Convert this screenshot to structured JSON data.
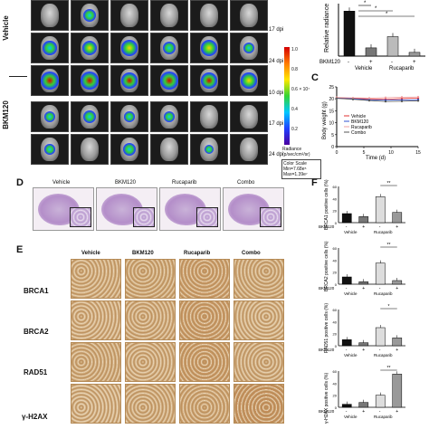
{
  "panelA": {
    "groups": [
      "Vehicle",
      "BKM120"
    ],
    "dpi_labels": [
      "17 dpi",
      "24 dpi",
      "10 dpi",
      "17 dpi",
      "24 dpi"
    ],
    "colorbar": {
      "ticks": [
        "1.0",
        "0.8",
        "0.6",
        "0.4",
        "0.2"
      ],
      "mid_label": "0.6 × 10⁷",
      "title": "Radiance",
      "unit": "(p/sec/cm²/sr)",
      "scale_title": "Color Scale",
      "scale_min": "Min=7.68e⁵",
      "scale_max": "Max=1.39e⁷"
    }
  },
  "panelB": {
    "ylabel": "Relative radiance",
    "row_label": "BKM120",
    "groups": [
      "Vehicle",
      "Rucaparib"
    ],
    "signs": [
      "-",
      "+",
      "-",
      "+"
    ],
    "sig": [
      "*",
      "*",
      "*"
    ]
  },
  "panelC": {
    "letter": "C",
    "ylabel": "Body weight (g)",
    "xlabel": "Time (d)",
    "yticks": [
      "25",
      "20",
      "15",
      "10",
      "5",
      "0"
    ],
    "xticks": [
      "0",
      "5",
      "10",
      "15"
    ],
    "legend": [
      "Vehicle",
      "BKM120",
      "Rucaparib",
      "Combo"
    ],
    "legend_colors": [
      "#e03030",
      "#3050d0",
      "#f0a0a0",
      "#555555"
    ]
  },
  "panelD": {
    "letter": "D",
    "columns": [
      "Vehicle",
      "BKM120",
      "Rucaparib",
      "Combo"
    ]
  },
  "panelE": {
    "letter": "E",
    "columns": [
      "Vehicle",
      "BKM120",
      "Rucaparib",
      "Combo"
    ],
    "rows": [
      "BRCA1",
      "BRCA2",
      "RAD51",
      "γ-H2AX"
    ]
  },
  "panelF": {
    "letter": "F",
    "row_label": "BKM120",
    "groups": [
      "Vehicle",
      "Rucaparib"
    ],
    "signs": [
      "-",
      "+",
      "-",
      "+"
    ],
    "sig_marks": [
      "**",
      "**",
      "*",
      "**"
    ],
    "ylabels": [
      "BRCA1 positive cells (%)",
      "BRCA2 positive cells (%)",
      "RAD51 positive cells (%)",
      "γ-H2AX positive cells (%)"
    ],
    "yticks": [
      "60",
      "40",
      "20",
      "0"
    ]
  },
  "chart_data": [
    {
      "type": "bar",
      "title": "",
      "xlabel": "",
      "ylabel": "Relative radiance",
      "categories": [
        "Vehicle -",
        "Vehicle +",
        "Rucaparib -",
        "Rucaparib +"
      ],
      "values": [
        6.0,
        1.1,
        2.6,
        0.5
      ],
      "ylim": [
        0,
        7
      ],
      "colors": [
        "#111111",
        "#777777",
        "#bbbbbb",
        "#999999"
      ]
    },
    {
      "type": "line",
      "title": "",
      "xlabel": "Time (d)",
      "ylabel": "Body weight (g)",
      "x": [
        0,
        3,
        6,
        9,
        12,
        15
      ],
      "series": [
        {
          "name": "Vehicle",
          "values": [
            20.5,
            20.2,
            20.0,
            19.8,
            20.1,
            20.3
          ]
        },
        {
          "name": "BKM120",
          "values": [
            20.3,
            20.0,
            19.6,
            19.4,
            19.5,
            19.6
          ]
        },
        {
          "name": "Rucaparib",
          "values": [
            20.6,
            20.4,
            20.3,
            20.5,
            20.7,
            20.8
          ]
        },
        {
          "name": "Combo",
          "values": [
            20.2,
            19.8,
            19.3,
            18.9,
            19.0,
            19.2
          ]
        }
      ],
      "ylim": [
        0,
        25
      ],
      "xlim": [
        0,
        15
      ]
    },
    {
      "type": "bar",
      "title": "",
      "ylabel": "BRCA1 positive cells (%)",
      "categories": [
        "Vehicle -",
        "Vehicle +",
        "Rucaparib -",
        "Rucaparib +"
      ],
      "values": [
        15,
        10,
        43,
        17
      ],
      "ylim": [
        0,
        60
      ],
      "colors": [
        "#111111",
        "#777777",
        "#dddddd",
        "#999999"
      ]
    },
    {
      "type": "bar",
      "title": "",
      "ylabel": "BRCA2 positive cells (%)",
      "categories": [
        "Vehicle -",
        "Vehicle +",
        "Rucaparib -",
        "Rucaparib +"
      ],
      "values": [
        12,
        4,
        35,
        6
      ],
      "ylim": [
        0,
        60
      ],
      "colors": [
        "#111111",
        "#777777",
        "#dddddd",
        "#999999"
      ]
    },
    {
      "type": "bar",
      "title": "",
      "ylabel": "RAD51 positive cells (%)",
      "categories": [
        "Vehicle -",
        "Vehicle +",
        "Rucaparib -",
        "Rucaparib +"
      ],
      "values": [
        10,
        5,
        30,
        13
      ],
      "ylim": [
        0,
        60
      ],
      "colors": [
        "#111111",
        "#777777",
        "#dddddd",
        "#999999"
      ]
    },
    {
      "type": "bar",
      "title": "",
      "ylabel": "γ-H2AX positive cells (%)",
      "categories": [
        "Vehicle -",
        "Vehicle +",
        "Rucaparib -",
        "Rucaparib +"
      ],
      "values": [
        5,
        8,
        20,
        55
      ],
      "ylim": [
        0,
        60
      ],
      "colors": [
        "#111111",
        "#777777",
        "#dddddd",
        "#999999"
      ]
    }
  ]
}
